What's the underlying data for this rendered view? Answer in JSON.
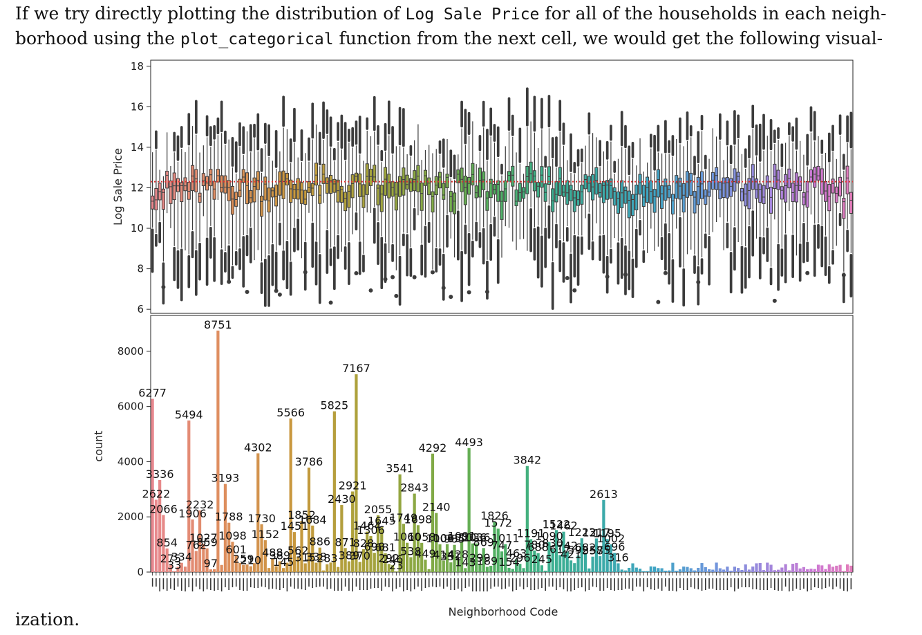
{
  "text": {
    "line1_a": "If we try directly plotting the distribution of ",
    "line1_code": "Log Sale Price",
    "line1_b": " for all of the households in each neigh-",
    "line2_a": "borhood using the ",
    "line2_code": "plot_categorical",
    "line2_b": " function from the next cell, we would get the following visual-",
    "line3": "ization."
  },
  "chart_data": [
    {
      "type": "box",
      "title": "",
      "xlabel": "",
      "ylabel": "Log Sale Price",
      "ylim": [
        5.8,
        18.3
      ],
      "yticks": [
        6,
        8,
        10,
        12,
        14,
        16,
        18
      ],
      "ytick_labels": [
        "6",
        "8",
        "10",
        "12",
        "14",
        "16",
        "18"
      ],
      "reference_line": {
        "y": 12.3,
        "style": "dotted",
        "color": "#e03030"
      },
      "categories_count": 193,
      "box_edge_color": "#3c3c3c"
    },
    {
      "type": "bar",
      "title": "",
      "xlabel": "Neighborhood Code",
      "ylabel": "count",
      "ylim": [
        0,
        9300
      ],
      "yticks": [
        0,
        2000,
        4000,
        6000,
        8000
      ],
      "ytick_labels": [
        "0",
        "2000",
        "4000",
        "6000",
        "8000"
      ],
      "labeled_bars": [
        {
          "slot": 0,
          "value": 6277,
          "label": "6277"
        },
        {
          "slot": 1,
          "value": 2622,
          "label": "2622"
        },
        {
          "slot": 2,
          "value": 3336,
          "label": "3336"
        },
        {
          "slot": 3,
          "value": 2066,
          "label": "2066"
        },
        {
          "slot": 4,
          "value": 854,
          "label": "854"
        },
        {
          "slot": 5,
          "value": 275,
          "label": "275"
        },
        {
          "slot": 6,
          "value": 33,
          "label": "33"
        },
        {
          "slot": 8,
          "value": 334,
          "label": "334"
        },
        {
          "slot": 10,
          "value": 5494,
          "label": "5494"
        },
        {
          "slot": 11,
          "value": 1906,
          "label": "1906"
        },
        {
          "slot": 12,
          "value": 762,
          "label": "762"
        },
        {
          "slot": 13,
          "value": 2232,
          "label": "2232"
        },
        {
          "slot": 14,
          "value": 1027,
          "label": "1027"
        },
        {
          "slot": 15,
          "value": 859,
          "label": "859"
        },
        {
          "slot": 16,
          "value": 97,
          "label": "97"
        },
        {
          "slot": 18,
          "value": 8751,
          "label": "8751"
        },
        {
          "slot": 20,
          "value": 3193,
          "label": "3193"
        },
        {
          "slot": 21,
          "value": 1788,
          "label": "1788"
        },
        {
          "slot": 22,
          "value": 1098,
          "label": "1098"
        },
        {
          "slot": 23,
          "value": 601,
          "label": "601"
        },
        {
          "slot": 25,
          "value": 259,
          "label": "259"
        },
        {
          "slot": 27,
          "value": 210,
          "label": "210"
        },
        {
          "slot": 29,
          "value": 4302,
          "label": "4302"
        },
        {
          "slot": 30,
          "value": 1730,
          "label": "1730"
        },
        {
          "slot": 31,
          "value": 1152,
          "label": "1152"
        },
        {
          "slot": 33,
          "value": 488,
          "label": "488"
        },
        {
          "slot": 35,
          "value": 389,
          "label": "389"
        },
        {
          "slot": 36,
          "value": 145,
          "label": "145"
        },
        {
          "slot": 38,
          "value": 5566,
          "label": "5566"
        },
        {
          "slot": 39,
          "value": 1451,
          "label": "1451"
        },
        {
          "slot": 40,
          "value": 562,
          "label": "562"
        },
        {
          "slot": 41,
          "value": 1852,
          "label": "1852"
        },
        {
          "slot": 42,
          "value": 315,
          "label": "315"
        },
        {
          "slot": 43,
          "value": 3786,
          "label": "3786"
        },
        {
          "slot": 44,
          "value": 1684,
          "label": "1684"
        },
        {
          "slot": 45,
          "value": 338,
          "label": "338"
        },
        {
          "slot": 46,
          "value": 886,
          "label": "886"
        },
        {
          "slot": 48,
          "value": 283,
          "label": "283"
        },
        {
          "slot": 50,
          "value": 5825,
          "label": "5825"
        },
        {
          "slot": 52,
          "value": 2430,
          "label": "2430"
        },
        {
          "slot": 53,
          "value": 871,
          "label": "871"
        },
        {
          "slot": 54,
          "value": 389,
          "label": "389"
        },
        {
          "slot": 55,
          "value": 2921,
          "label": "2921"
        },
        {
          "slot": 56,
          "value": 7167,
          "label": "7167"
        },
        {
          "slot": 57,
          "value": 370,
          "label": "370"
        },
        {
          "slot": 58,
          "value": 828,
          "label": "828"
        },
        {
          "slot": 59,
          "value": 1464,
          "label": "1464"
        },
        {
          "slot": 60,
          "value": 1306,
          "label": "1306"
        },
        {
          "slot": 61,
          "value": 698,
          "label": "698"
        },
        {
          "slot": 62,
          "value": 2055,
          "label": "2055"
        },
        {
          "slot": 63,
          "value": 1645,
          "label": "1645"
        },
        {
          "slot": 64,
          "value": 681,
          "label": "681"
        },
        {
          "slot": 65,
          "value": 292,
          "label": "292"
        },
        {
          "slot": 66,
          "value": 246,
          "label": "246"
        },
        {
          "slot": 67,
          "value": 23,
          "label": "23"
        },
        {
          "slot": 68,
          "value": 3541,
          "label": "3541"
        },
        {
          "slot": 69,
          "value": 1749,
          "label": "1749"
        },
        {
          "slot": 70,
          "value": 1060,
          "label": "1060"
        },
        {
          "slot": 71,
          "value": 538,
          "label": "538"
        },
        {
          "slot": 72,
          "value": 2843,
          "label": "2843"
        },
        {
          "slot": 73,
          "value": 1698,
          "label": "1698"
        },
        {
          "slot": 74,
          "value": 1058,
          "label": "1058"
        },
        {
          "slot": 75,
          "value": 449,
          "label": "449"
        },
        {
          "slot": 77,
          "value": 4292,
          "label": "4292"
        },
        {
          "slot": 78,
          "value": 2140,
          "label": "2140"
        },
        {
          "slot": 79,
          "value": 1006,
          "label": "1006"
        },
        {
          "slot": 80,
          "value": 414,
          "label": "414"
        },
        {
          "slot": 81,
          "value": 1015,
          "label": "1015"
        },
        {
          "slot": 82,
          "value": 351,
          "label": "351"
        },
        {
          "slot": 83,
          "value": 985,
          "label": "985"
        },
        {
          "slot": 84,
          "value": 428,
          "label": "428"
        },
        {
          "slot": 85,
          "value": 1091,
          "label": "1091"
        },
        {
          "slot": 86,
          "value": 143,
          "label": "143"
        },
        {
          "slot": 87,
          "value": 4493,
          "label": "4493"
        },
        {
          "slot": 88,
          "value": 1036,
          "label": "1036"
        },
        {
          "slot": 89,
          "value": 1036,
          "label": "1036"
        },
        {
          "slot": 90,
          "value": 299,
          "label": "299"
        },
        {
          "slot": 91,
          "value": 869,
          "label": "869"
        },
        {
          "slot": 92,
          "value": 189,
          "label": "189"
        },
        {
          "slot": 94,
          "value": 1826,
          "label": "1826"
        },
        {
          "slot": 95,
          "value": 1572,
          "label": "1572"
        },
        {
          "slot": 96,
          "value": 747,
          "label": "747"
        },
        {
          "slot": 97,
          "value": 1011,
          "label": "1011"
        },
        {
          "slot": 98,
          "value": 154,
          "label": "154"
        },
        {
          "slot": 100,
          "value": 463,
          "label": "463"
        },
        {
          "slot": 101,
          "value": 296,
          "label": "296"
        },
        {
          "slot": 103,
          "value": 3842,
          "label": "3842"
        },
        {
          "slot": 104,
          "value": 1191,
          "label": "1191"
        },
        {
          "slot": 105,
          "value": 780,
          "label": "780"
        },
        {
          "slot": 106,
          "value": 688,
          "label": "688"
        },
        {
          "slot": 107,
          "value": 245,
          "label": "245"
        },
        {
          "slot": 109,
          "value": 1090,
          "label": "1090"
        },
        {
          "slot": 110,
          "value": 830,
          "label": "830"
        },
        {
          "slot": 111,
          "value": 1522,
          "label": "1522"
        },
        {
          "slot": 112,
          "value": 617,
          "label": "617"
        },
        {
          "slot": 113,
          "value": 1462,
          "label": "1462"
        },
        {
          "slot": 114,
          "value": 742,
          "label": "742"
        },
        {
          "slot": 115,
          "value": 421,
          "label": "421"
        },
        {
          "slot": 117,
          "value": 592,
          "label": "592"
        },
        {
          "slot": 118,
          "value": 1223,
          "label": "1223"
        },
        {
          "slot": 119,
          "value": 682,
          "label": "682"
        },
        {
          "slot": 121,
          "value": 558,
          "label": "558"
        },
        {
          "slot": 122,
          "value": 1217,
          "label": "1217"
        },
        {
          "slot": 123,
          "value": 575,
          "label": "575"
        },
        {
          "slot": 124,
          "value": 2613,
          "label": "2613"
        },
        {
          "slot": 125,
          "value": 1195,
          "label": "1195"
        },
        {
          "slot": 126,
          "value": 1002,
          "label": "1002"
        },
        {
          "slot": 127,
          "value": 696,
          "label": "696"
        },
        {
          "slot": 128,
          "value": 316,
          "label": "316"
        }
      ],
      "unlabeled_bar_count": 64
    }
  ]
}
